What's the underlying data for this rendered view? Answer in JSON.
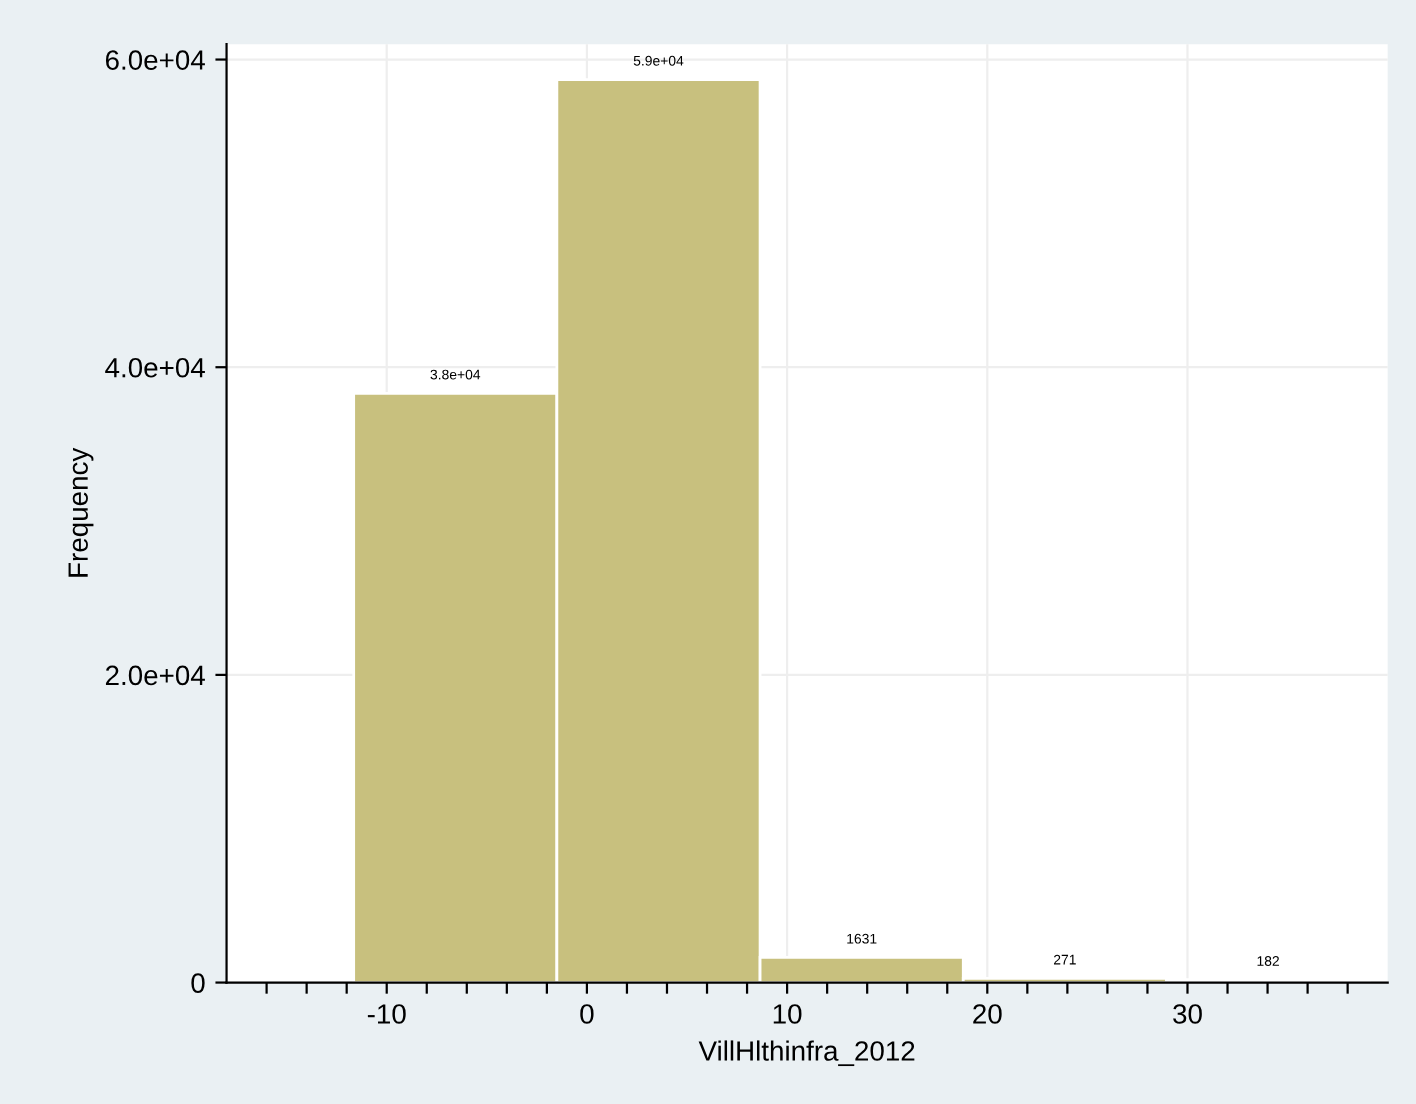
{
  "chart_data": {
    "type": "histogram",
    "xlabel": "VillHlthinfra_2012",
    "ylabel": "Frequency",
    "bins": [
      -11.65,
      -1.5,
      8.65,
      18.8,
      28.95,
      39.1
    ],
    "values": [
      38300,
      58700,
      1631,
      271,
      182
    ],
    "value_labels": [
      "3.8e+04",
      "5.9e+04",
      "1631",
      "271",
      "182"
    ],
    "color": "#c8c07e",
    "xlim": [
      -18,
      40
    ],
    "xticks": [
      {
        "value": -16,
        "label": null
      },
      {
        "value": -14,
        "label": null
      },
      {
        "value": -12,
        "label": null
      },
      -10,
      {
        "value": -8,
        "label": null
      },
      {
        "value": -6,
        "label": null
      },
      {
        "value": -4,
        "label": null
      },
      {
        "value": -2,
        "label": null
      },
      0,
      {
        "value": 2,
        "label": null
      },
      {
        "value": 4,
        "label": null
      },
      {
        "value": 6,
        "label": null
      },
      {
        "value": 8,
        "label": null
      },
      10,
      {
        "value": 12,
        "label": null
      },
      {
        "value": 14,
        "label": null
      },
      {
        "value": 16,
        "label": null
      },
      {
        "value": 18,
        "label": null
      },
      20,
      {
        "value": 22,
        "label": null
      },
      {
        "value": 24,
        "label": null
      },
      {
        "value": 26,
        "label": null
      },
      {
        "value": 28,
        "label": null
      },
      30,
      {
        "value": 32,
        "label": null
      },
      {
        "value": 34,
        "label": null
      },
      {
        "value": 36,
        "label": null
      },
      {
        "value": 38,
        "label": null
      }
    ],
    "ylim": [
      0,
      61000
    ],
    "yticks": [
      0,
      {
        "value": 20000,
        "label": "2.0e+04"
      },
      {
        "value": 40000,
        "label": "4.0e+04"
      },
      {
        "value": 60000,
        "label": "6.0e+04"
      }
    ],
    "grid": true
  }
}
